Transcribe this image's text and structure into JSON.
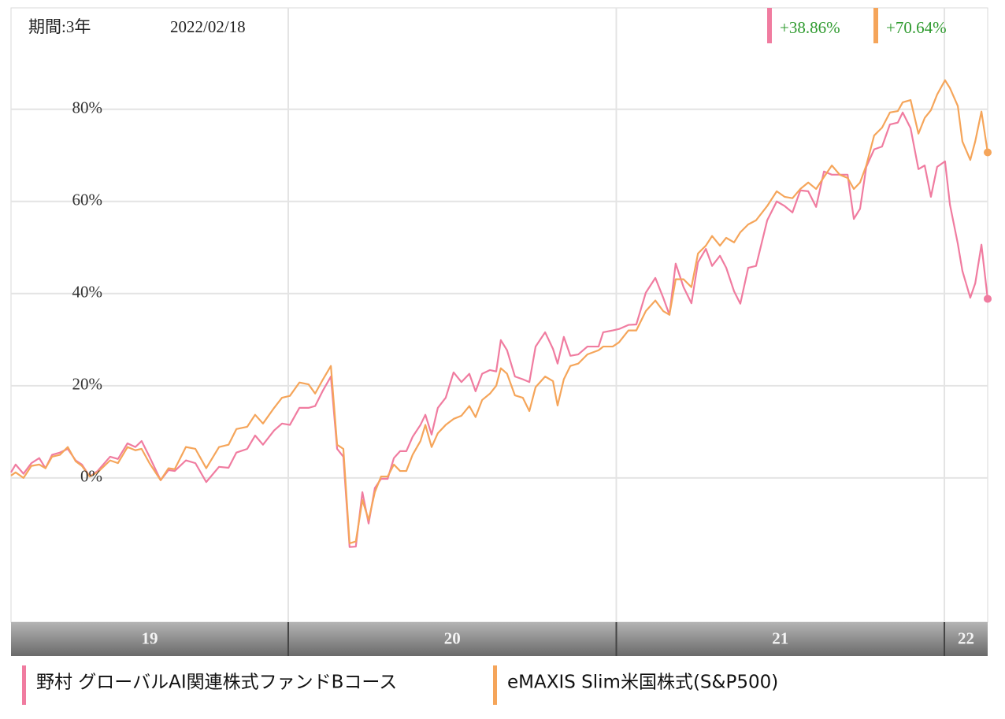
{
  "chart_data": {
    "type": "line",
    "period": "期間:3年",
    "date": "2022/02/18",
    "x": [
      2019.155,
      2019.169,
      2019.193,
      2019.217,
      2019.241,
      2019.26,
      2019.28,
      2019.304,
      2019.328,
      2019.352,
      2019.371,
      2019.395,
      2019.419,
      2019.457,
      2019.481,
      2019.51,
      2019.534,
      2019.553,
      2019.577,
      2019.611,
      2019.635,
      2019.654,
      2019.688,
      2019.717,
      2019.75,
      2019.789,
      2019.818,
      2019.842,
      2019.875,
      2019.899,
      2019.923,
      2019.957,
      2019.981,
      2020.005,
      2020.034,
      2020.062,
      2020.082,
      2020.106,
      2020.13,
      2020.149,
      2020.168,
      2020.187,
      2020.206,
      2020.226,
      2020.245,
      2020.264,
      2020.283,
      2020.303,
      2020.322,
      2020.341,
      2020.36,
      2020.379,
      2020.403,
      2020.418,
      2020.437,
      2020.456,
      2020.48,
      2020.504,
      2020.528,
      2020.552,
      2020.571,
      2020.591,
      2020.615,
      2020.634,
      2020.648,
      2020.667,
      2020.691,
      2020.715,
      2020.735,
      2020.754,
      2020.783,
      2020.807,
      2020.821,
      2020.84,
      2020.86,
      2020.884,
      2020.912,
      2020.946,
      2020.96,
      2020.989,
      2021.008,
      2021.037,
      2021.061,
      2021.09,
      2021.119,
      2021.143,
      2021.162,
      2021.181,
      2021.205,
      2021.229,
      2021.249,
      2021.273,
      2021.292,
      2021.316,
      2021.335,
      2021.359,
      2021.378,
      2021.402,
      2021.426,
      2021.46,
      2021.489,
      2021.513,
      2021.537,
      2021.561,
      2021.585,
      2021.609,
      2021.633,
      2021.657,
      2021.681,
      2021.705,
      2021.724,
      2021.743,
      2021.762,
      2021.786,
      2021.81,
      2021.834,
      2021.858,
      2021.873,
      2021.897,
      2021.921,
      2021.94,
      2021.959,
      2021.978,
      2022.002,
      2022.017,
      2022.041,
      2022.055,
      2022.079,
      2022.094,
      2022.113,
      2022.132
    ],
    "series": [
      {
        "name": "野村 グローバルAI関連株式ファンドBコース",
        "color": "#f07ca0",
        "end_label": "+38.86%",
        "values": [
          1.2,
          2.9,
          0.9,
          3.2,
          4.3,
          2.1,
          5.0,
          5.5,
          6.3,
          3.8,
          2.9,
          0.3,
          1.5,
          4.6,
          4.1,
          7.5,
          6.7,
          8.0,
          4.6,
          -0.5,
          1.7,
          1.5,
          3.8,
          3.2,
          -0.9,
          2.4,
          2.2,
          5.5,
          6.3,
          9.2,
          7.2,
          10.3,
          11.8,
          11.5,
          15.2,
          15.2,
          15.6,
          19.0,
          22.0,
          6.3,
          4.6,
          -15.0,
          -14.9,
          -3.1,
          -9.9,
          -2.2,
          -0.2,
          -0.2,
          4.3,
          5.8,
          5.8,
          8.9,
          11.5,
          13.7,
          9.4,
          15.2,
          17.4,
          22.9,
          20.8,
          22.6,
          18.8,
          22.6,
          23.4,
          23.1,
          29.9,
          27.7,
          22.0,
          21.4,
          20.8,
          28.5,
          31.6,
          28.0,
          24.8,
          30.6,
          26.5,
          26.8,
          28.5,
          28.5,
          31.6,
          32.0,
          32.3,
          33.2,
          33.3,
          40.2,
          43.4,
          39.1,
          35.4,
          46.5,
          41.4,
          37.9,
          46.8,
          49.7,
          46.0,
          48.2,
          45.6,
          40.5,
          37.8,
          45.6,
          46.0,
          55.9,
          60.0,
          59.0,
          57.6,
          62.4,
          62.2,
          58.8,
          66.5,
          65.8,
          65.8,
          65.8,
          56.2,
          58.4,
          67.5,
          71.3,
          71.9,
          76.7,
          77.1,
          79.3,
          75.9,
          67.0,
          67.8,
          61.0,
          67.5,
          68.7,
          59.3,
          50.8,
          44.9,
          39.1,
          42.2,
          50.6,
          38.86
        ]
      },
      {
        "name": "eMAXIS Slim米国株式(S&P500)",
        "color": "#f5a55a",
        "end_label": "+70.64%",
        "values": [
          0.5,
          1.2,
          0,
          2.6,
          2.9,
          2.1,
          4.6,
          5.0,
          6.7,
          3.6,
          2.6,
          0.3,
          1.2,
          3.8,
          3.2,
          6.7,
          6.0,
          6.3,
          3.2,
          -0.5,
          2.1,
          1.9,
          6.7,
          6.3,
          2.1,
          6.7,
          7.2,
          10.6,
          11.1,
          13.7,
          11.8,
          15.2,
          17.4,
          17.8,
          20.7,
          20.3,
          18.3,
          21.4,
          24.3,
          7.2,
          6.3,
          -14.2,
          -13.8,
          -4.8,
          -9.1,
          -3.1,
          0.3,
          0.3,
          2.9,
          1.5,
          1.5,
          5.0,
          8.0,
          11.5,
          6.7,
          9.7,
          11.5,
          12.8,
          13.5,
          15.6,
          13.2,
          16.9,
          18.3,
          20.0,
          23.8,
          22.6,
          17.9,
          17.4,
          14.5,
          19.7,
          22.0,
          21.0,
          15.7,
          21.4,
          24.3,
          24.8,
          26.8,
          27.7,
          28.5,
          28.5,
          29.4,
          32.0,
          32.0,
          36.2,
          38.5,
          36.2,
          35.4,
          43.1,
          43.1,
          41.4,
          48.7,
          50.4,
          52.5,
          50.4,
          52.1,
          51.1,
          53.3,
          55.0,
          55.9,
          59.0,
          62.2,
          61.0,
          60.7,
          62.7,
          64.1,
          62.7,
          65.3,
          67.8,
          65.8,
          65.1,
          62.7,
          64.1,
          67.8,
          74.3,
          76.0,
          79.3,
          79.6,
          81.5,
          82.0,
          74.7,
          78.1,
          79.8,
          83.2,
          86.3,
          84.6,
          80.7,
          73.0,
          69.0,
          73.0,
          79.5,
          70.64
        ]
      }
    ],
    "xlim": [
      2019.155,
      2022.132
    ],
    "xticks": [
      {
        "value": 2019,
        "label": "19"
      },
      {
        "value": 2020,
        "label": "20"
      },
      {
        "value": 2021,
        "label": "21"
      },
      {
        "value": 2022,
        "label": "22"
      }
    ],
    "ylim": [
      -31.3,
      102
    ],
    "yticks": [
      {
        "value": 0,
        "label": "0%"
      },
      {
        "value": 20,
        "label": "20%"
      },
      {
        "value": 40,
        "label": "40%"
      },
      {
        "value": 60,
        "label": "60%"
      },
      {
        "value": 80,
        "label": "80%"
      }
    ],
    "grid": true
  }
}
